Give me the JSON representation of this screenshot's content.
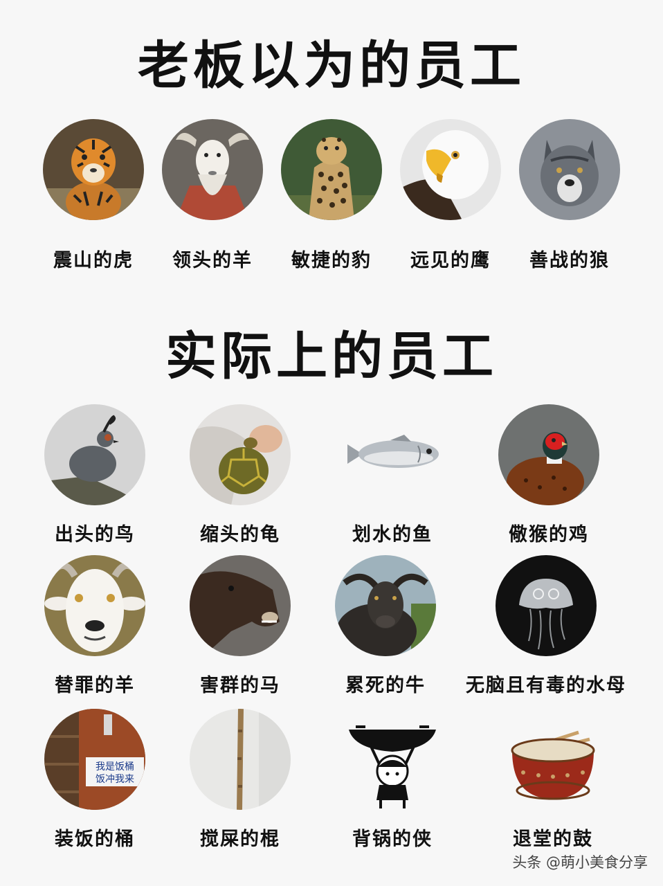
{
  "title_top": "老板以为的员工",
  "title_bottom": "实际上的员工",
  "top_items": [
    {
      "label": "震山的虎",
      "icon": "tiger-icon"
    },
    {
      "label": "领头的羊",
      "icon": "goat-icon"
    },
    {
      "label": "敏捷的豹",
      "icon": "leopard-icon"
    },
    {
      "label": "远见的鹰",
      "icon": "eagle-icon"
    },
    {
      "label": "善战的狼",
      "icon": "wolf-icon"
    }
  ],
  "bottom_items": [
    {
      "label": "出头的鸟",
      "icon": "quail-icon"
    },
    {
      "label": "缩头的龟",
      "icon": "turtle-icon"
    },
    {
      "label": "划水的鱼",
      "icon": "fish-icon"
    },
    {
      "label": "儆猴的鸡",
      "icon": "pheasant-icon"
    },
    {
      "label": "替罪的羊",
      "icon": "goat-face-icon"
    },
    {
      "label": "害群的马",
      "icon": "horse-icon"
    },
    {
      "label": "累死的牛",
      "icon": "buffalo-icon"
    },
    {
      "label": "无脑且有毒的水母",
      "icon": "jellyfish-icon"
    },
    {
      "label": "装饭的桶",
      "icon": "rice-bucket-icon"
    },
    {
      "label": "搅屎的棍",
      "icon": "stick-icon"
    },
    {
      "label": "背锅的侠",
      "icon": "wok-carrier-icon"
    },
    {
      "label": "退堂的鼓",
      "icon": "drum-icon"
    }
  ],
  "bucket_sign_lines": [
    "我是饭桶",
    "饭冲我来"
  ],
  "watermark": "头条 @萌小美食分享"
}
